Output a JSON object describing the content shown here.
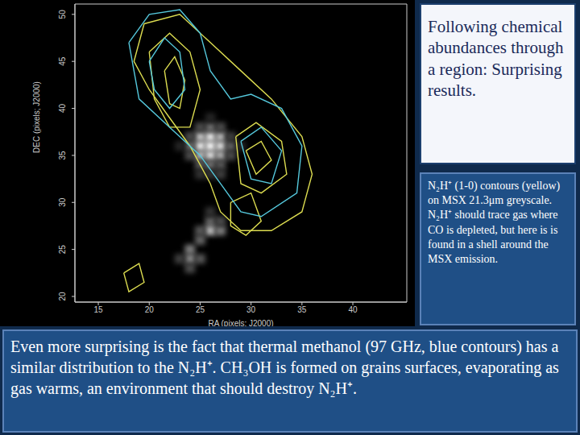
{
  "title": "Following chemical abundances through a region: Surprising results.",
  "caption": "N₂H⁺ (1-0) contours (yellow) on MSX 21.3μm greyscale. N₂H⁺ should trace gas where CO is depleted, but here is is found in a shell around the MSX emission.",
  "footer": "Even more surprising is the fact that thermal methanol (97 GHz, blue contours) has a similar distribution to the N₂H⁺. CH₃OH is formed on grains surfaces, evaporating as gas warms, an environment that should destroy N₂H⁺.",
  "chart_data": {
    "type": "contour",
    "xlabel": "RA (pixels; J2000)",
    "ylabel": "DEC (pixels; J2000)",
    "xlim": [
      12.7,
      45.3
    ],
    "ylim": [
      19.4,
      51.1
    ],
    "xticks": [
      15,
      20,
      25,
      30,
      35,
      40
    ],
    "yticks": [
      20,
      25,
      30,
      35,
      40,
      45,
      50
    ],
    "greyscale": {
      "vlim": [
        0,
        1
      ],
      "pixels": [
        [
          26,
          36,
          1
        ],
        [
          25,
          36,
          0.95
        ],
        [
          27,
          36,
          0.9
        ],
        [
          26,
          37,
          0.95
        ],
        [
          26,
          35,
          0.9
        ],
        [
          25,
          37,
          0.8
        ],
        [
          27,
          37,
          0.75
        ],
        [
          25,
          35,
          0.75
        ],
        [
          27,
          35,
          0.7
        ],
        [
          24,
          36,
          0.45
        ],
        [
          28,
          36,
          0.4
        ],
        [
          26,
          38,
          0.45
        ],
        [
          26,
          34,
          0.45
        ],
        [
          24,
          37,
          0.3
        ],
        [
          28,
          37,
          0.25
        ],
        [
          24,
          35,
          0.3
        ],
        [
          28,
          35,
          0.3
        ],
        [
          25,
          38,
          0.3
        ],
        [
          27,
          38,
          0.3
        ],
        [
          25,
          34,
          0.35
        ],
        [
          27,
          34,
          0.35
        ],
        [
          26,
          33,
          0.2
        ],
        [
          25,
          33,
          0.2
        ],
        [
          27,
          33,
          0.25
        ],
        [
          23,
          36,
          0.15
        ],
        [
          29,
          36,
          0.15
        ],
        [
          26,
          39,
          0.15
        ],
        [
          26,
          28,
          0.4
        ],
        [
          26,
          27,
          0.75
        ],
        [
          27,
          27,
          0.5
        ],
        [
          25,
          27,
          0.35
        ],
        [
          25,
          26,
          0.4
        ],
        [
          24,
          25,
          0.5
        ],
        [
          24,
          24,
          0.55
        ],
        [
          25,
          24,
          0.35
        ],
        [
          23,
          24,
          0.25
        ],
        [
          24,
          23,
          0.3
        ],
        [
          26,
          29,
          0.2
        ],
        [
          27,
          28,
          0.3
        ]
      ]
    },
    "series": [
      {
        "color": "#dcdc50",
        "line_style": "solid",
        "contours": [
          [
            [
              19.5,
              49
            ],
            [
              23,
              50
            ],
            [
              26,
              47
            ],
            [
              29,
              44
            ],
            [
              32,
              41
            ],
            [
              35,
              37
            ],
            [
              36,
              33
            ],
            [
              35,
              29
            ],
            [
              32,
              27
            ],
            [
              29,
              27
            ],
            [
              27,
              29
            ],
            [
              26,
              32
            ],
            [
              24,
              36
            ],
            [
              22,
              39
            ],
            [
              20,
              42
            ],
            [
              18.5,
              45
            ]
          ],
          [
            [
              20,
              46
            ],
            [
              22,
              48
            ],
            [
              24,
              46
            ],
            [
              25,
              42
            ],
            [
              24,
              38
            ],
            [
              22,
              38
            ],
            [
              20.5,
              41
            ]
          ],
          [
            [
              21.5,
              44
            ],
            [
              22.5,
              45.5
            ],
            [
              23.5,
              43
            ],
            [
              23,
              40
            ],
            [
              22,
              40.5
            ]
          ],
          [
            [
              28.5,
              37
            ],
            [
              30.5,
              38.5
            ],
            [
              33,
              36.5
            ],
            [
              33.5,
              33
            ],
            [
              31,
              31
            ],
            [
              29,
              32
            ]
          ],
          [
            [
              29.5,
              35.5
            ],
            [
              31,
              36.5
            ],
            [
              32,
              34.5
            ],
            [
              30.5,
              33
            ]
          ],
          [
            [
              28,
              30
            ],
            [
              30,
              31
            ],
            [
              31,
              28
            ],
            [
              29.5,
              26.5
            ],
            [
              28,
              27.5
            ]
          ],
          [
            [
              17.5,
              22.5
            ],
            [
              19,
              23.5
            ],
            [
              19.5,
              21.5
            ],
            [
              18,
              20.5
            ]
          ]
        ]
      },
      {
        "color": "#55c8dc",
        "line_style": "solid",
        "contours": [
          [
            [
              18,
              47
            ],
            [
              20,
              50
            ],
            [
              23,
              50.5
            ],
            [
              25,
              48
            ],
            [
              26,
              44
            ],
            [
              28,
              41
            ],
            [
              30,
              41.5
            ],
            [
              33,
              40
            ],
            [
              35,
              36
            ],
            [
              34.5,
              31
            ],
            [
              31,
              28.5
            ],
            [
              29,
              29
            ],
            [
              27,
              32
            ],
            [
              25,
              35
            ],
            [
              22,
              38
            ],
            [
              19,
              41
            ]
          ],
          [
            [
              20,
              45
            ],
            [
              21.5,
              47.5
            ],
            [
              23,
              46
            ],
            [
              23.5,
              42
            ],
            [
              22,
              40
            ],
            [
              20.5,
              42
            ]
          ],
          [
            [
              29,
              36.5
            ],
            [
              31,
              38
            ],
            [
              33,
              35.5
            ],
            [
              32,
              32
            ],
            [
              30,
              32.5
            ]
          ]
        ]
      }
    ]
  }
}
